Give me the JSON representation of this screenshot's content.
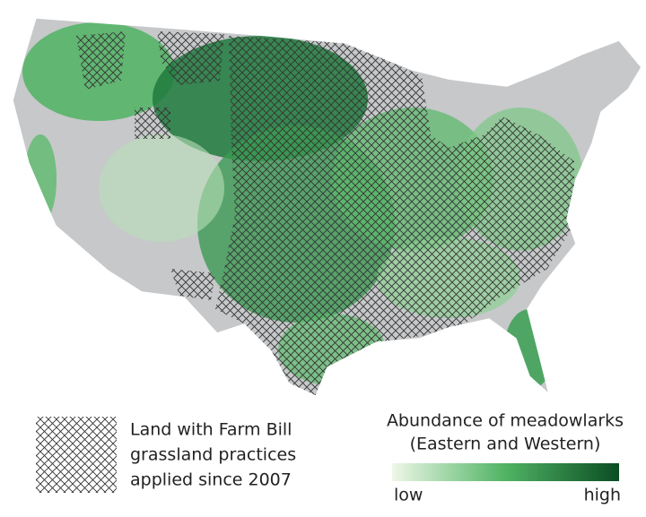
{
  "hatch_legend": {
    "lines": [
      "Land with Farm Bill",
      "grassland practices",
      "applied since 2007"
    ]
  },
  "abundance_legend": {
    "title_lines": [
      "Abundance of meadowlarks",
      "(Eastern and Western)"
    ],
    "low": "low",
    "high": "high"
  }
}
